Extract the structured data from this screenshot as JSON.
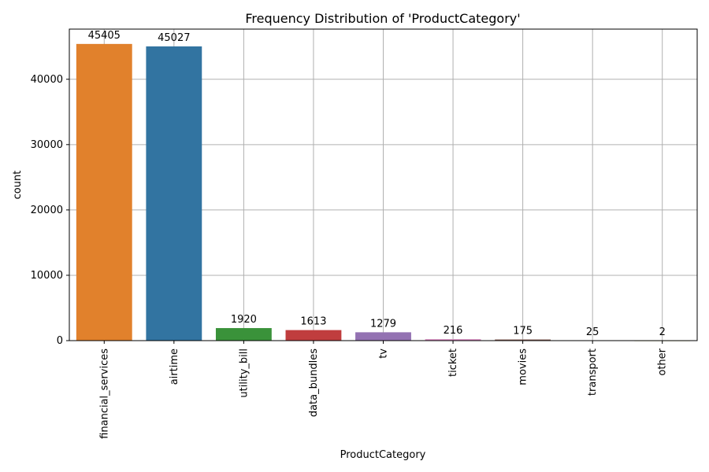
{
  "chart_data": {
    "type": "bar",
    "title": "Frequency Distribution of 'ProductCategory'",
    "xlabel": "ProductCategory",
    "ylabel": "count",
    "categories": [
      "financial_services",
      "airtime",
      "utility_bill",
      "data_bundles",
      "tv",
      "ticket",
      "movies",
      "transport",
      "other"
    ],
    "values": [
      45405,
      45027,
      1920,
      1613,
      1279,
      216,
      175,
      25,
      2
    ],
    "data_labels": [
      "45405",
      "45027",
      "1920",
      "1613",
      "1279",
      "216",
      "175",
      "25",
      "2"
    ],
    "colors": [
      "#e1812c",
      "#3274a1",
      "#3a923a",
      "#c03d3e",
      "#9372b2",
      "#d684bd",
      "#845b53",
      "#7f7f7f",
      "#a9aa35"
    ],
    "ylim": [
      0,
      47675
    ],
    "yticks": [
      0,
      10000,
      20000,
      30000,
      40000
    ],
    "ytick_labels": [
      "0",
      "10000",
      "20000",
      "30000",
      "40000"
    ],
    "grid": true,
    "legend": false
  }
}
